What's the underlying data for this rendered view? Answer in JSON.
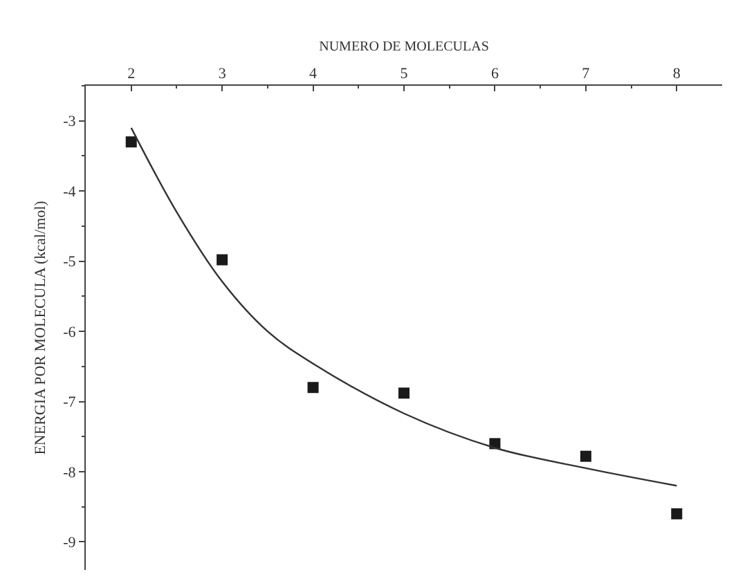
{
  "chart_data": {
    "type": "scatter",
    "xlabel": "NUMERO DE MOLECULAS",
    "ylabel": "ENERGIA POR MOLECULA (kcal/mol)",
    "xlim": [
      1.5,
      8.5
    ],
    "xticks": [
      2,
      3,
      4,
      5,
      6,
      7,
      8
    ],
    "ylim": [
      -9.4,
      -2.5
    ],
    "yticks": [
      -9,
      -8,
      -7,
      -6,
      -5,
      -4,
      -3
    ],
    "grid": false,
    "series": [
      {
        "marker": "square",
        "color": "#1a1a1a",
        "x": [
          2,
          3,
          4,
          5,
          6,
          7,
          8
        ],
        "values": [
          -3.3,
          -4.98,
          -6.8,
          -6.88,
          -7.6,
          -7.78,
          -8.6
        ]
      },
      {
        "type": "line",
        "marker": "none",
        "color": "#333333",
        "line_style": "solid",
        "x": [
          2,
          2.5,
          3,
          3.5,
          4,
          5,
          6,
          7,
          8
        ],
        "values": [
          -3.1,
          -4.3,
          -5.29,
          -6.0,
          -6.46,
          -7.17,
          -7.66,
          -7.95,
          -8.2
        ]
      }
    ]
  }
}
